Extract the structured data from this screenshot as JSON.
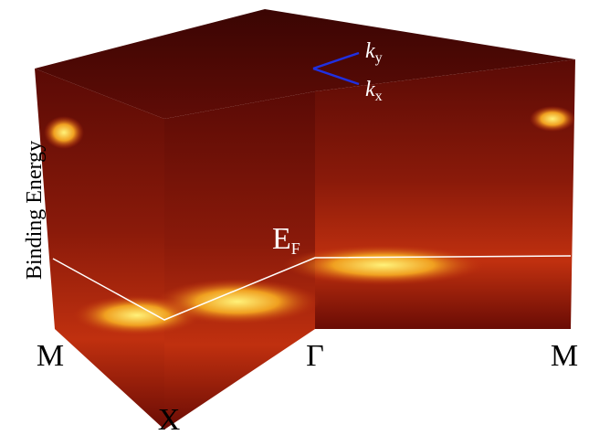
{
  "axis_label": "Binding Energy",
  "fermi_level": {
    "main": "E",
    "sub": "F"
  },
  "points": {
    "left": "M",
    "center": "Γ",
    "right": "M",
    "front": "X"
  },
  "axes": {
    "ky": {
      "main": "k",
      "sub": "y"
    },
    "kx": {
      "main": "k",
      "sub": "x"
    }
  }
}
